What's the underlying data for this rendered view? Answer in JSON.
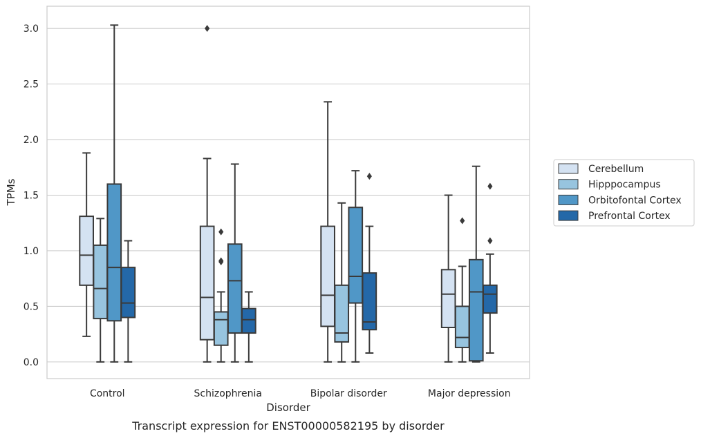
{
  "chart_data": {
    "type": "box",
    "title": "Transcript expression for ENST00000582195 by disorder",
    "xlabel": "Disorder",
    "ylabel": "TPMs",
    "ylim": [
      -0.15,
      3.2
    ],
    "yticks": [
      0.0,
      0.5,
      1.0,
      1.5,
      2.0,
      2.5,
      3.0
    ],
    "ytick_labels": [
      "0.0",
      "0.5",
      "1.0",
      "1.5",
      "2.0",
      "2.5",
      "3.0"
    ],
    "grid": "horizontal",
    "legend_position": "right",
    "categories": [
      "Control",
      "Schizophrenia",
      "Bipolar disorder",
      "Major depression"
    ],
    "series": [
      {
        "name": "Cerebellum",
        "color": "#d4e2f2",
        "boxes": [
          {
            "whisker_low": 0.23,
            "q1": 0.69,
            "median": 0.96,
            "q3": 1.31,
            "whisker_high": 1.88,
            "outliers": []
          },
          {
            "whisker_low": 0.0,
            "q1": 0.2,
            "median": 0.58,
            "q3": 1.22,
            "whisker_high": 1.83,
            "outliers": [
              3.0
            ]
          },
          {
            "whisker_low": 0.0,
            "q1": 0.32,
            "median": 0.6,
            "q3": 1.22,
            "whisker_high": 2.34,
            "outliers": []
          },
          {
            "whisker_low": 0.0,
            "q1": 0.31,
            "median": 0.61,
            "q3": 0.83,
            "whisker_high": 1.5,
            "outliers": []
          }
        ]
      },
      {
        "name": "Hipppocampus",
        "color": "#97c4df",
        "boxes": [
          {
            "whisker_low": 0.0,
            "q1": 0.39,
            "median": 0.66,
            "q3": 1.05,
            "whisker_high": 1.29,
            "outliers": []
          },
          {
            "whisker_low": 0.0,
            "q1": 0.15,
            "median": 0.38,
            "q3": 0.45,
            "whisker_high": 0.63,
            "outliers": [
              0.9,
              0.91,
              1.17
            ]
          },
          {
            "whisker_low": 0.0,
            "q1": 0.18,
            "median": 0.26,
            "q3": 0.69,
            "whisker_high": 1.43,
            "outliers": []
          },
          {
            "whisker_low": 0.0,
            "q1": 0.13,
            "median": 0.22,
            "q3": 0.5,
            "whisker_high": 0.86,
            "outliers": [
              1.27
            ]
          }
        ]
      },
      {
        "name": "Orbitofontal Cortex",
        "color": "#5097c7",
        "boxes": [
          {
            "whisker_low": 0.0,
            "q1": 0.37,
            "median": 0.85,
            "q3": 1.6,
            "whisker_high": 3.03,
            "outliers": []
          },
          {
            "whisker_low": 0.0,
            "q1": 0.26,
            "median": 0.73,
            "q3": 1.06,
            "whisker_high": 1.78,
            "outliers": []
          },
          {
            "whisker_low": 0.0,
            "q1": 0.53,
            "median": 0.77,
            "q3": 1.39,
            "whisker_high": 1.72,
            "outliers": []
          },
          {
            "whisker_low": 0.0,
            "q1": 0.01,
            "median": 0.63,
            "q3": 0.92,
            "whisker_high": 1.76,
            "outliers": []
          }
        ]
      },
      {
        "name": "Prefrontal Cortex",
        "color": "#2468a8",
        "boxes": [
          {
            "whisker_low": 0.0,
            "q1": 0.4,
            "median": 0.53,
            "q3": 0.85,
            "whisker_high": 1.09,
            "outliers": []
          },
          {
            "whisker_low": 0.0,
            "q1": 0.26,
            "median": 0.38,
            "q3": 0.48,
            "whisker_high": 0.63,
            "outliers": []
          },
          {
            "whisker_low": 0.08,
            "q1": 0.29,
            "median": 0.36,
            "q3": 0.8,
            "whisker_high": 1.22,
            "outliers": [
              1.67
            ]
          },
          {
            "whisker_low": 0.08,
            "q1": 0.44,
            "median": 0.61,
            "q3": 0.69,
            "whisker_high": 0.97,
            "outliers": [
              1.09,
              1.58
            ]
          }
        ]
      }
    ]
  }
}
